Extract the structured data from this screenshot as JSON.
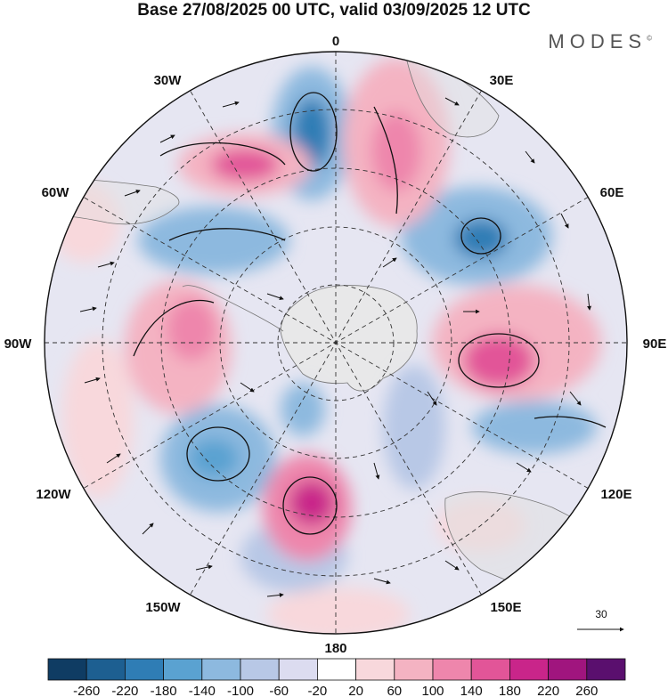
{
  "title": "Base 27/08/2025 00 UTC, valid 03/09/2025 12 UTC",
  "brand": "MODES",
  "brand_mark": "©",
  "meridian_labels": {
    "n0": "0",
    "e30": "30E",
    "e60": "60E",
    "e90": "90E",
    "e120": "120E",
    "e150": "150E",
    "s180": "180",
    "w150": "150W",
    "w120": "120W",
    "w90": "90W",
    "w60": "60W",
    "w30": "30W"
  },
  "reference_vector": {
    "label": "30"
  },
  "colorbar": {
    "tick_labels": [
      "-260",
      "-220",
      "-180",
      "-140",
      "-100",
      "-60",
      "-20",
      "20",
      "60",
      "100",
      "140",
      "180",
      "220",
      "260"
    ],
    "colors": [
      "#0f3c63",
      "#1d5f91",
      "#2f7db5",
      "#5aa2d1",
      "#8db9df",
      "#b8c8e6",
      "#dcdcf0",
      "#ffffff",
      "#f8d8dc",
      "#f4b3c2",
      "#ee86ac",
      "#e25598",
      "#c9258a",
      "#a0157e",
      "#5a0f6e"
    ]
  },
  "map_features": {
    "land_color": "#e8e8e8",
    "positive_anomaly": "#ee86ac",
    "negative_anomaly": "#5aa2d1"
  }
}
